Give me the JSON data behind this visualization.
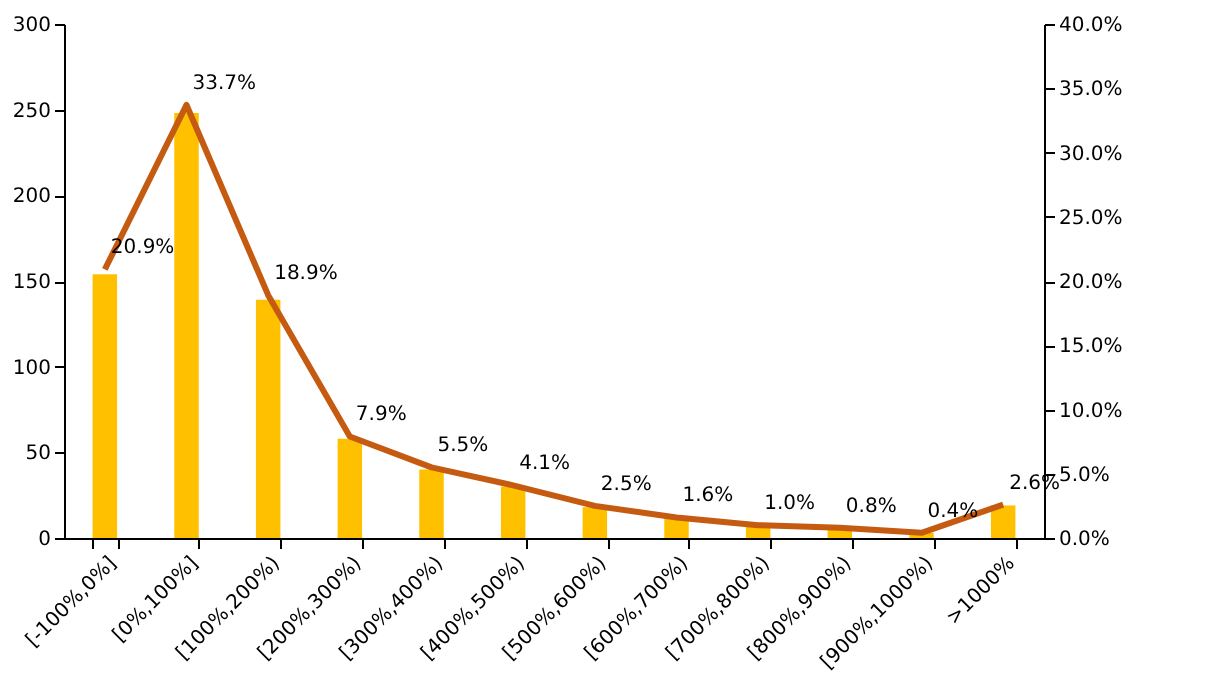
{
  "chart_data": {
    "type": "bar",
    "categories": [
      "[-100%,0%]",
      "[0%,100%]",
      "[100%,200%)",
      "[200%,300%)",
      "[300%,400%)",
      "[400%,500%)",
      "[500%,600%)",
      "[600%,700%)",
      "[700%,800%)",
      "[800%,900%)",
      "[900%,1000%)",
      ">1000%"
    ],
    "series": [
      {
        "color": "#ffc000",
        "values": [
          154,
          248,
          139,
          58,
          40,
          30,
          18,
          12,
          7,
          6,
          3,
          19
        ]
      },
      {
        "type": "line",
        "axis": "y2",
        "color": "#c55a11",
        "values": [
          20.9,
          33.7,
          18.9,
          7.9,
          5.5,
          4.1,
          2.5,
          1.6,
          1.0,
          0.8,
          0.4,
          2.6
        ],
        "value_labels": [
          "20.9%",
          "33.7%",
          "18.9%",
          "7.9%",
          "5.5%",
          "4.1%",
          "2.5%",
          "1.6%",
          "1.0%",
          "0.8%",
          "0.4%",
          "2.6%"
        ]
      }
    ],
    "ylim": [
      0,
      300
    ],
    "yticks": [
      0,
      50,
      100,
      150,
      200,
      250,
      300
    ],
    "y2lim": [
      0,
      40
    ],
    "y2ticks": [
      {
        "value": 0,
        "label": "0.0%"
      },
      {
        "value": 5,
        "label": "5.0%"
      },
      {
        "value": 10,
        "label": "10.0%"
      },
      {
        "value": 15,
        "label": "15.0%"
      },
      {
        "value": 20,
        "label": "20.0%"
      },
      {
        "value": 25,
        "label": "25.0%"
      },
      {
        "value": 30,
        "label": "30.0%"
      },
      {
        "value": 35,
        "label": "35.0%"
      },
      {
        "value": 40,
        "label": "40.0%"
      }
    ],
    "grid": false,
    "line_style": "solid",
    "marker": "none"
  }
}
